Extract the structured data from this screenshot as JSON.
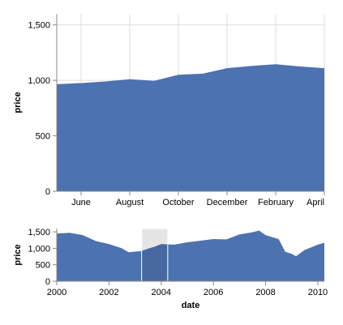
{
  "chart_data": [
    {
      "type": "area",
      "role": "detail",
      "xlabel": "",
      "ylabel": "price",
      "ylim": [
        0,
        1600
      ],
      "yticks": [
        0,
        500,
        1000,
        1500
      ],
      "ytick_labels": [
        "0",
        "500",
        "1,000",
        "1,500"
      ],
      "xticks": [
        "June",
        "August",
        "October",
        "December",
        "February",
        "April"
      ],
      "grid": true,
      "color": "#4c72b0",
      "x": [
        "May 2003",
        "Jun 2003",
        "Jul 2003",
        "Aug 2003",
        "Sep 2003",
        "Oct 2003",
        "Nov 2003",
        "Dec 2003",
        "Jan 2004",
        "Feb 2004",
        "Mar 2004",
        "Apr 2004"
      ],
      "values": [
        965,
        975,
        990,
        1010,
        995,
        1050,
        1060,
        1110,
        1130,
        1145,
        1125,
        1110
      ]
    },
    {
      "type": "area",
      "role": "overview",
      "xlabel": "date",
      "ylabel": "price",
      "ylim": [
        0,
        1600
      ],
      "yticks": [
        0,
        500,
        1000,
        1500
      ],
      "ytick_labels": [
        "0",
        "500",
        "1,000",
        "1,500"
      ],
      "xticks": [
        "2000",
        "2002",
        "2004",
        "2006",
        "2008",
        "2010"
      ],
      "grid": false,
      "color": "#4c72b0",
      "brush": [
        "Apr 2003",
        "Apr 2004"
      ],
      "x": [
        "Jan 2000",
        "Jul 2000",
        "Jan 2001",
        "Jul 2001",
        "Jan 2002",
        "Jul 2002",
        "Oct 2002",
        "Jan 2003",
        "Apr 2003",
        "Jul 2003",
        "Oct 2003",
        "Jan 2004",
        "Jul 2004",
        "Jan 2005",
        "Jul 2005",
        "Jan 2006",
        "Jul 2006",
        "Jan 2007",
        "Jul 2007",
        "Oct 2007",
        "Jan 2008",
        "Jul 2008",
        "Oct 2008",
        "Jan 2009",
        "Mar 2009",
        "Jul 2009",
        "Jan 2010",
        "Apr 2010"
      ],
      "values": [
        1450,
        1470,
        1400,
        1220,
        1130,
        1000,
        880,
        900,
        920,
        990,
        1050,
        1130,
        1110,
        1180,
        1230,
        1280,
        1270,
        1420,
        1490,
        1540,
        1400,
        1280,
        900,
        830,
        760,
        950,
        1110,
        1170
      ]
    }
  ]
}
